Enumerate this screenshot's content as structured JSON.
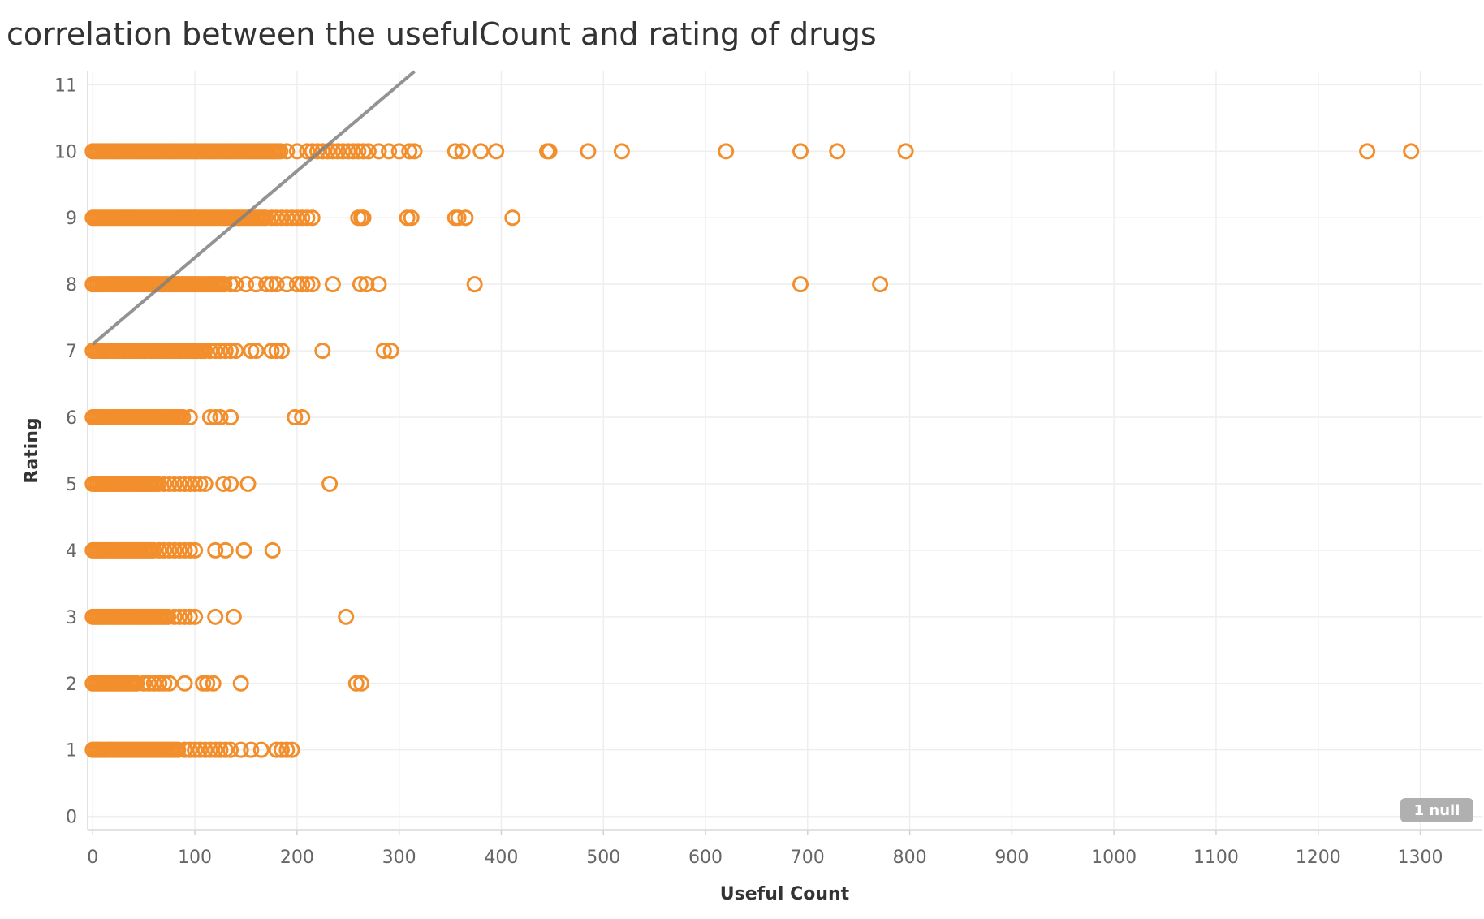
{
  "chart_data": {
    "type": "scatter",
    "title": "correlation between the usefulCount and rating of drugs",
    "xlabel": "Useful Count",
    "ylabel": "Rating",
    "xlim": [
      -5,
      1360
    ],
    "ylim": [
      -0.2,
      11.2
    ],
    "x_ticks": [
      0,
      100,
      200,
      300,
      400,
      500,
      600,
      700,
      800,
      900,
      1000,
      1100,
      1200,
      1300
    ],
    "y_ticks": [
      0,
      1,
      2,
      3,
      4,
      5,
      6,
      7,
      8,
      9,
      10,
      11
    ],
    "grid": true,
    "marker": "open-circle",
    "series_color": "#f28e2b",
    "trend_line": {
      "x0": 0,
      "y0": 7.1,
      "x1": 315,
      "y1": 11.2,
      "color": "#808080"
    },
    "null_badge": "1 null",
    "dense_ranges": [
      {
        "rating": 10,
        "x_from": 0,
        "x_to": 185
      },
      {
        "rating": 9,
        "x_from": 0,
        "x_to": 170
      },
      {
        "rating": 8,
        "x_from": 0,
        "x_to": 130
      },
      {
        "rating": 7,
        "x_from": 0,
        "x_to": 110
      },
      {
        "rating": 6,
        "x_from": 0,
        "x_to": 90
      },
      {
        "rating": 5,
        "x_from": 0,
        "x_to": 65
      },
      {
        "rating": 4,
        "x_from": 0,
        "x_to": 60
      },
      {
        "rating": 3,
        "x_from": 0,
        "x_to": 75
      },
      {
        "rating": 2,
        "x_from": 0,
        "x_to": 45
      },
      {
        "rating": 1,
        "x_from": 0,
        "x_to": 85
      }
    ],
    "points": [
      {
        "rating": 10,
        "x": [
          190,
          200,
          210,
          215,
          220,
          225,
          230,
          235,
          240,
          245,
          250,
          255,
          260,
          265,
          270,
          280,
          290,
          300,
          310,
          315,
          355,
          362,
          380,
          395,
          445,
          447,
          485,
          518,
          620,
          693,
          729,
          796,
          1248,
          1291
        ]
      },
      {
        "rating": 9,
        "x": [
          175,
          180,
          185,
          190,
          195,
          200,
          205,
          210,
          215,
          260,
          263,
          265,
          308,
          312,
          355,
          358,
          365,
          411
        ]
      },
      {
        "rating": 8,
        "x": [
          135,
          140,
          150,
          160,
          170,
          175,
          180,
          190,
          200,
          205,
          210,
          215,
          235,
          262,
          268,
          280,
          374,
          693,
          771
        ]
      },
      {
        "rating": 7,
        "x": [
          115,
          120,
          125,
          130,
          135,
          140,
          155,
          160,
          175,
          180,
          185,
          225,
          285,
          292
        ]
      },
      {
        "rating": 6,
        "x": [
          95,
          115,
          120,
          125,
          135,
          198,
          205
        ]
      },
      {
        "rating": 5,
        "x": [
          70,
          75,
          80,
          85,
          90,
          95,
          100,
          105,
          110,
          128,
          135,
          152,
          232
        ]
      },
      {
        "rating": 4,
        "x": [
          65,
          70,
          75,
          80,
          85,
          90,
          95,
          100,
          120,
          130,
          148,
          176
        ]
      },
      {
        "rating": 3,
        "x": [
          80,
          85,
          90,
          95,
          100,
          120,
          138,
          248
        ]
      },
      {
        "rating": 2,
        "x": [
          50,
          55,
          60,
          65,
          70,
          75,
          90,
          108,
          112,
          118,
          145,
          258,
          263
        ]
      },
      {
        "rating": 1,
        "x": [
          90,
          95,
          100,
          105,
          110,
          115,
          120,
          125,
          130,
          135,
          145,
          155,
          165,
          180,
          185,
          190,
          195
        ]
      }
    ]
  }
}
